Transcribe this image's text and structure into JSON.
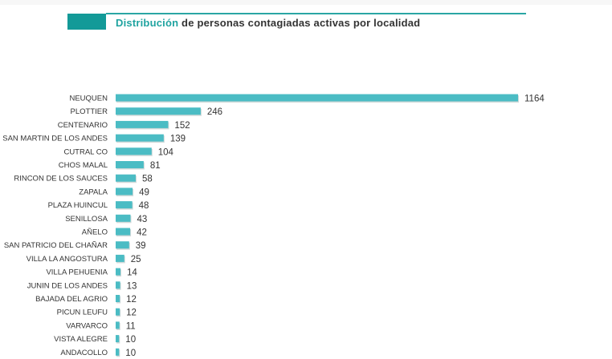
{
  "header": {
    "title_accent": "Distribución",
    "title_rest": " de personas contagiadas activas por localidad"
  },
  "chart_data": {
    "type": "bar",
    "orientation": "horizontal",
    "title": "Distribución de personas contagiadas activas por localidad",
    "categories": [
      "NEUQUEN",
      "PLOTTIER",
      "CENTENARIO",
      "SAN MARTIN DE LOS ANDES",
      "CUTRAL CO",
      "CHOS MALAL",
      "RINCON DE LOS SAUCES",
      "ZAPALA",
      "PLAZA HUINCUL",
      "SENILLOSA",
      "AÑELO",
      "SAN PATRICIO DEL CHAÑAR",
      "VILLA LA ANGOSTURA",
      "VILLA PEHUENIA",
      "JUNIN DE LOS ANDES",
      "BAJADA DEL AGRIO",
      "PICUN LEUFU",
      "VARVARCO",
      "VISTA ALEGRE",
      "ANDACOLLO"
    ],
    "values": [
      1164,
      246,
      152,
      139,
      104,
      81,
      58,
      49,
      48,
      43,
      42,
      39,
      25,
      14,
      13,
      12,
      12,
      11,
      10,
      10
    ],
    "xlim": [
      0,
      1164
    ],
    "bar_color": "#4bbcc4",
    "grid": false
  }
}
